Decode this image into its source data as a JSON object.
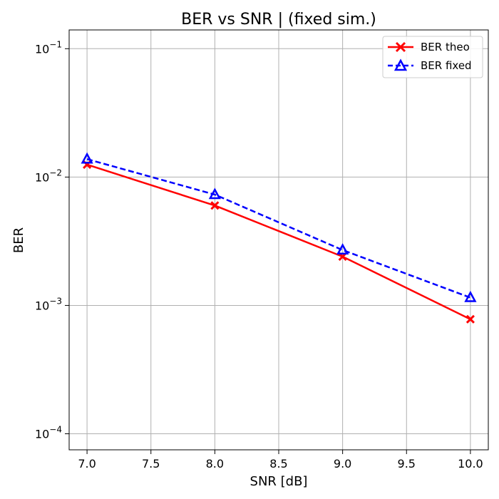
{
  "chart_data": {
    "type": "line",
    "title": "BER vs SNR | (fixed sim.)",
    "xlabel": "SNR [dB]",
    "ylabel": "BER",
    "xlim": [
      6.86,
      10.14
    ],
    "ylim": [
      7.5e-05,
      0.14
    ],
    "yscale": "log",
    "grid": true,
    "legend_position": "top-right",
    "x_ticks": [
      {
        "value": 7.0,
        "label": "7.0"
      },
      {
        "value": 7.5,
        "label": "7.5"
      },
      {
        "value": 8.0,
        "label": "8.0"
      },
      {
        "value": 8.5,
        "label": "8.5"
      },
      {
        "value": 9.0,
        "label": "9.0"
      },
      {
        "value": 9.5,
        "label": "9.5"
      },
      {
        "value": 10.0,
        "label": "10.0"
      }
    ],
    "y_ticks": [
      {
        "value": 0.0001,
        "base": "10",
        "exp": "−4"
      },
      {
        "value": 0.001,
        "base": "10",
        "exp": "−3"
      },
      {
        "value": 0.01,
        "base": "10",
        "exp": "−2"
      },
      {
        "value": 0.1,
        "base": "10",
        "exp": "−1"
      }
    ],
    "x": [
      7.0,
      8.0,
      9.0,
      10.0
    ],
    "series": [
      {
        "name": "BER theo",
        "values": [
          0.0125,
          0.006,
          0.0024,
          0.00078
        ],
        "color": "#ff0000",
        "line_style": "solid",
        "marker": "x"
      },
      {
        "name": "BER fixed",
        "values": [
          0.0138,
          0.0073,
          0.0027,
          0.00115
        ],
        "color": "#0000ff",
        "line_style": "dashed",
        "marker": "triangle"
      }
    ]
  }
}
